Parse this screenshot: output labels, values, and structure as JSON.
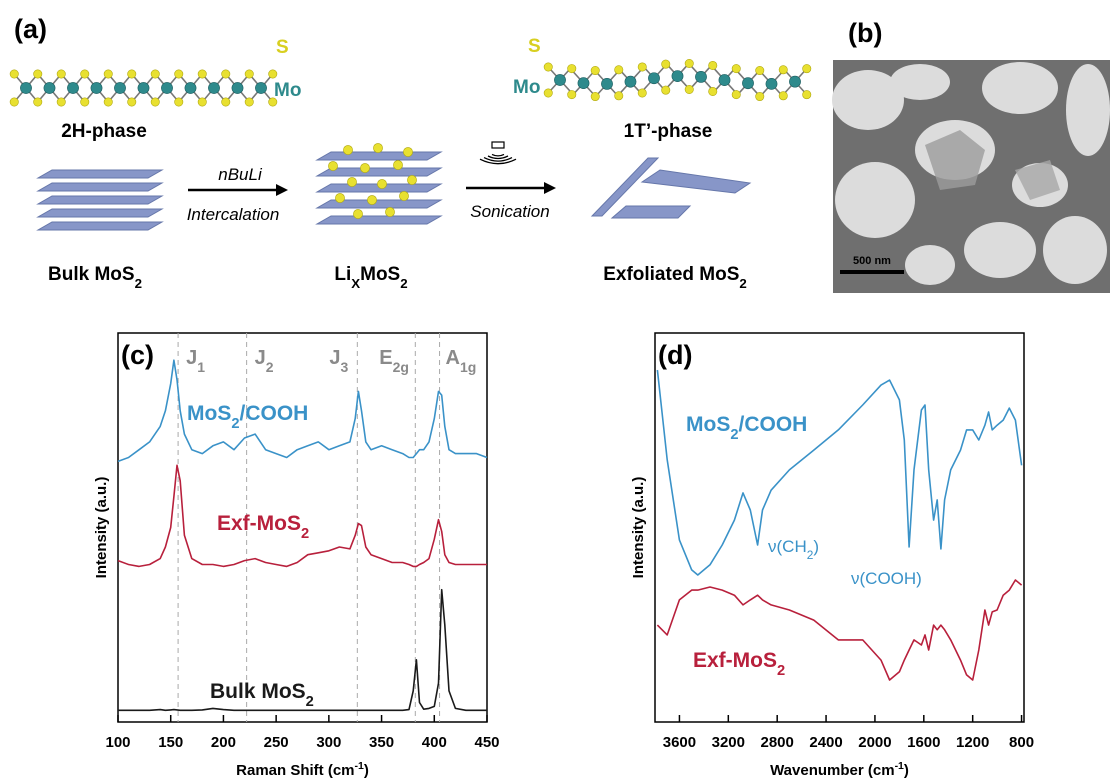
{
  "panel_a": {
    "label": "(a)",
    "s_left": "S",
    "mo_left": "Mo",
    "phase_2h": "2H-phase",
    "s_right": "S",
    "mo_right": "Mo",
    "phase_1t": "1T’-phase",
    "reagent": "nBuLi",
    "step_1": "Intercalation",
    "step_2": "Sonication",
    "bulk": [
      "Bulk MoS",
      {
        "sub": "2"
      }
    ],
    "intercalated": [
      "Li",
      {
        "sub": "X"
      },
      "MoS",
      {
        "sub": "2"
      }
    ],
    "exfoliated": [
      "Exfoliated MoS",
      {
        "sub": "2"
      }
    ]
  },
  "panel_b": {
    "label": "(b)",
    "scale_bar": "500 nm"
  },
  "chart_data": [
    {
      "type": "line",
      "panel_label": "(c)",
      "xlabel": [
        "Raman Shift (cm",
        {
          "sup": "-1"
        },
        ")"
      ],
      "ylabel": "Intensity (a.u.)",
      "xlim": [
        100,
        450
      ],
      "ylim": [
        0,
        100
      ],
      "xticks": [
        100,
        150,
        200,
        250,
        300,
        350,
        400,
        450
      ],
      "x": [
        100,
        110,
        120,
        130,
        140,
        145,
        150,
        153,
        156,
        159,
        163,
        170,
        180,
        190,
        200,
        210,
        220,
        230,
        240,
        250,
        260,
        270,
        280,
        290,
        300,
        310,
        320,
        325,
        328,
        331,
        335,
        340,
        350,
        360,
        370,
        376,
        380,
        383,
        386,
        390,
        395,
        400,
        404,
        407,
        410,
        414,
        420,
        430,
        440,
        450
      ],
      "series": [
        {
          "name": [
            "MoS",
            {
              "sub": "2"
            },
            "/COOH"
          ],
          "color": "#3a92c8",
          "values": [
            67,
            68,
            70,
            72,
            76,
            80,
            87,
            93,
            88,
            80,
            74,
            70,
            69,
            71,
            72,
            70,
            73,
            74,
            70,
            69,
            68,
            70,
            71,
            72,
            70,
            71,
            72,
            78,
            85,
            80,
            72,
            70,
            71,
            70,
            69,
            68,
            68,
            69,
            70,
            70,
            72,
            78,
            85,
            84,
            76,
            70,
            69,
            69,
            69,
            68
          ]
        },
        {
          "name": [
            "Exf-MoS",
            {
              "sub": "2"
            }
          ],
          "color": "#b8203c",
          "values": [
            41.5,
            40.5,
            40,
            40.5,
            42,
            45,
            50,
            58,
            66,
            62,
            48,
            42,
            40.5,
            40.5,
            40,
            40.5,
            41.5,
            42,
            41,
            40.5,
            40,
            41,
            43,
            43.5,
            44,
            45,
            44.5,
            48,
            51,
            50.5,
            45,
            43,
            42,
            41,
            41,
            40.5,
            40,
            40,
            40.5,
            41,
            42,
            47,
            52,
            49,
            43,
            41,
            40.5,
            40.5,
            40.5,
            40.5
          ]
        },
        {
          "name": [
            "Bulk MoS",
            {
              "sub": "2"
            }
          ],
          "color": "#1a1a1a",
          "values": [
            3,
            3,
            3,
            3,
            3.2,
            3,
            3.1,
            3.2,
            3.1,
            3,
            3,
            3,
            3.1,
            3.5,
            3.2,
            3,
            3,
            3,
            3,
            3,
            3,
            3,
            3,
            3,
            3,
            3,
            3,
            3,
            3,
            3,
            3,
            3,
            3,
            3,
            3,
            3.2,
            8,
            16,
            5,
            3.3,
            3.5,
            4,
            10,
            34,
            25,
            8,
            3.5,
            3,
            3,
            3
          ]
        }
      ],
      "annotations": [
        {
          "x": 157,
          "label": [
            "J",
            {
              "sub": "1"
            }
          ]
        },
        {
          "x": 222,
          "label": [
            "J",
            {
              "sub": "2"
            }
          ]
        },
        {
          "x": 327,
          "label": [
            "J",
            {
              "sub": "3"
            }
          ]
        },
        {
          "x": 382,
          "label": [
            "E",
            {
              "sub": "2g"
            }
          ]
        },
        {
          "x": 405,
          "label": [
            "A",
            {
              "sub": "1g"
            }
          ]
        }
      ]
    },
    {
      "type": "line",
      "panel_label": "(d)",
      "xlabel": [
        "Wavenumber (cm",
        {
          "sup": "-1"
        },
        ")"
      ],
      "ylabel": "Intensity (a.u.)",
      "xlim": [
        3800,
        780
      ],
      "ylim": [
        0,
        100
      ],
      "xticks": [
        3600,
        3200,
        2800,
        2400,
        2000,
        1600,
        1200,
        800
      ],
      "x": [
        3780,
        3700,
        3600,
        3500,
        3450,
        3350,
        3250,
        3150,
        3080,
        3020,
        2960,
        2920,
        2850,
        2700,
        2500,
        2300,
        2100,
        1950,
        1880,
        1800,
        1760,
        1720,
        1680,
        1620,
        1590,
        1560,
        1520,
        1490,
        1460,
        1430,
        1380,
        1300,
        1250,
        1200,
        1150,
        1100,
        1070,
        1040,
        1000,
        950,
        900,
        850,
        800
      ],
      "series": [
        {
          "name": [
            "MoS",
            {
              "sub": "2"
            },
            "/COOH"
          ],
          "color": "#3a92c8",
          "values": [
            90.5,
            67.4,
            46.8,
            39.1,
            37.8,
            40.4,
            45.5,
            51.9,
            58.9,
            54.5,
            45.5,
            54.5,
            59.6,
            64.8,
            69.9,
            75.1,
            81.5,
            86.6,
            87.9,
            82.8,
            72.5,
            45,
            64.8,
            80.2,
            81.5,
            64.8,
            51.9,
            57.1,
            44.5,
            57.1,
            64.8,
            69.9,
            75.1,
            75.1,
            72.5,
            76.3,
            79.7,
            75.1,
            76.3,
            77.6,
            80.7,
            77.6,
            66
          ]
        },
        {
          "name": [
            "Exf-MoS",
            {
              "sub": "2"
            }
          ],
          "color": "#b8203c",
          "values": [
            24.9,
            22.4,
            31.4,
            33.9,
            33.9,
            34.7,
            33.9,
            32.6,
            30.1,
            31.4,
            32.6,
            31.4,
            30.1,
            28.8,
            26.2,
            21.1,
            21.1,
            15.9,
            10.8,
            12.9,
            15.9,
            18.5,
            21.1,
            19.8,
            22.4,
            18.5,
            24.9,
            23.7,
            24.9,
            23.7,
            21.1,
            15.9,
            12.1,
            10.8,
            18.5,
            28.8,
            24.9,
            28.3,
            28.8,
            32.6,
            33.9,
            36.5,
            35.2
          ]
        }
      ],
      "annotations": [
        {
          "label": [
            "ν(CH",
            {
              "sub": "2"
            },
            ")"
          ]
        },
        {
          "label": "ν(COOH)"
        }
      ]
    }
  ]
}
